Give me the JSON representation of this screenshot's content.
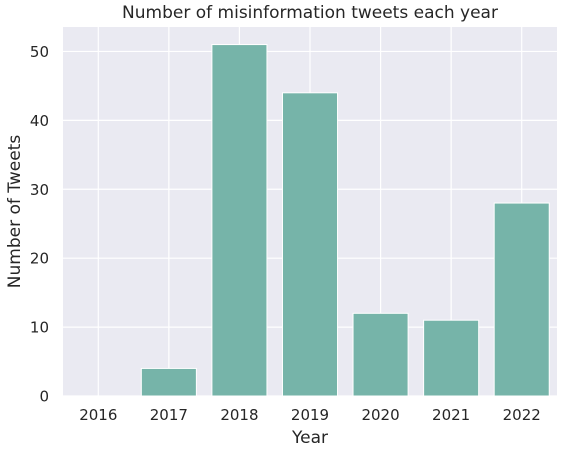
{
  "chart_data": {
    "type": "bar",
    "title": "Number of misinformation tweets each year",
    "xlabel": "Year",
    "ylabel": "Number of Tweets",
    "categories": [
      "2016",
      "2017",
      "2018",
      "2019",
      "2020",
      "2021",
      "2022"
    ],
    "values": [
      0,
      4,
      51,
      44,
      12,
      11,
      28
    ],
    "ylim": [
      0,
      53.55
    ],
    "yticks": [
      0,
      10,
      20,
      30,
      40,
      50
    ],
    "grid": true,
    "colors": {
      "bar": "#76b4a9",
      "plot_background": "#eaeaf2",
      "grid": "#ffffff",
      "text": "#262626"
    }
  }
}
